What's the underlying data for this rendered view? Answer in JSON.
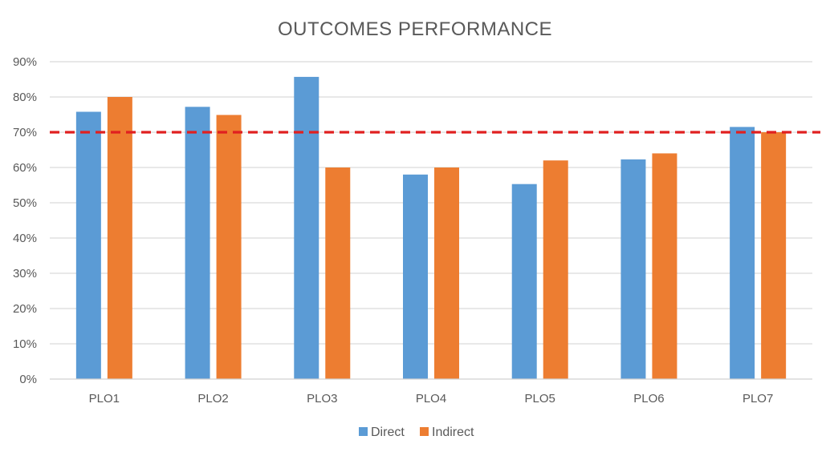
{
  "chart_data": {
    "type": "bar",
    "title": "OUTCOMES PERFORMANCE",
    "categories": [
      "PLO1",
      "PLO2",
      "PLO3",
      "PLO4",
      "PLO5",
      "PLO6",
      "PLO7"
    ],
    "series": [
      {
        "name": "Direct",
        "color": "#5B9BD5",
        "values": [
          75.8,
          77.2,
          85.7,
          58.0,
          55.3,
          62.3,
          71.5
        ]
      },
      {
        "name": "Indirect",
        "color": "#ED7D31",
        "values": [
          80.0,
          74.9,
          60.0,
          60.0,
          62.0,
          64.0,
          70.0
        ]
      }
    ],
    "ylim": [
      0,
      90
    ],
    "yticks": [
      0,
      10,
      20,
      30,
      40,
      50,
      60,
      70,
      80,
      90
    ],
    "ytick_labels": [
      "0%",
      "10%",
      "20%",
      "30%",
      "40%",
      "50%",
      "60%",
      "70%",
      "80%",
      "90%"
    ],
    "target_line": {
      "value": 70,
      "color": "#E02020",
      "style": "dashed"
    },
    "grid": true,
    "gridline_color": "#D9D9D9",
    "legend_position": "bottom-center",
    "xlabel": "",
    "ylabel": ""
  }
}
